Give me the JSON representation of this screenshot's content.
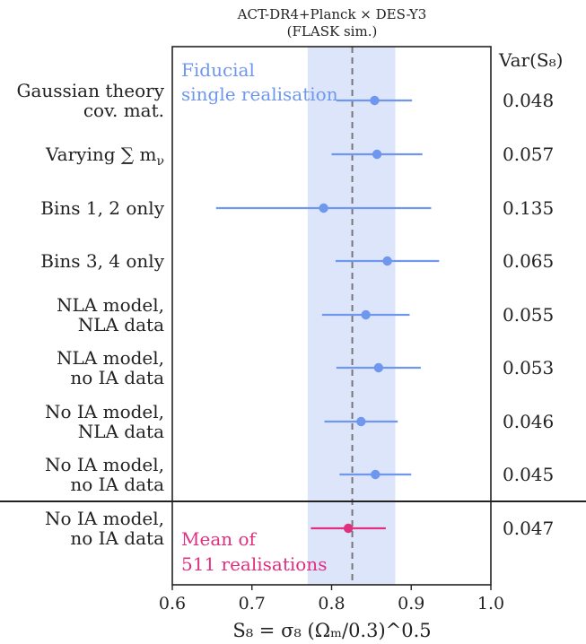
{
  "chart_data": {
    "type": "scatter",
    "title_line1": "ACT-DR4+Planck × DES-Y3",
    "title_line2": "(FLASK sim.)",
    "xlabel": "S₈ = σ₈ (Ωₘ/0.3)^0.5",
    "xlim": [
      0.6,
      1.0
    ],
    "xticks": [
      "0.6",
      "0.7",
      "0.8",
      "0.9",
      "1.0"
    ],
    "var_header": "Var(S₈)",
    "reference_line": 0.826,
    "shaded_band": [
      0.77,
      0.88
    ],
    "band_note_line1": "Fiducial",
    "band_note_line2": "single realisation",
    "mean_note_line1": "Mean of",
    "mean_note_line2": "511 realisations",
    "colors": {
      "fiducial": "#6f97ee",
      "mean": "#e0307f",
      "band": "#dde5fb",
      "refline": "#777777"
    },
    "rows": [
      {
        "label_lines": [
          "Gaussian theory",
          "cov. mat."
        ],
        "value": 0.854,
        "low": 0.806,
        "high": 0.901,
        "var": "0.048",
        "group": "fiducial"
      },
      {
        "label_lines": [
          "Varying ∑ m",
          "ν"
        ],
        "value": 0.857,
        "low": 0.8,
        "high": 0.914,
        "var": "0.057",
        "group": "fiducial"
      },
      {
        "label_lines": [
          "Bins 1, 2 only"
        ],
        "value": 0.79,
        "low": 0.655,
        "high": 0.925,
        "var": "0.135",
        "group": "fiducial"
      },
      {
        "label_lines": [
          "Bins 3, 4 only"
        ],
        "value": 0.87,
        "low": 0.805,
        "high": 0.935,
        "var": "0.065",
        "group": "fiducial"
      },
      {
        "label_lines": [
          "NLA model,",
          "NLA data"
        ],
        "value": 0.843,
        "low": 0.788,
        "high": 0.898,
        "var": "0.055",
        "group": "fiducial"
      },
      {
        "label_lines": [
          "NLA model,",
          "no IA data"
        ],
        "value": 0.859,
        "low": 0.806,
        "high": 0.912,
        "var": "0.053",
        "group": "fiducial"
      },
      {
        "label_lines": [
          "No IA model,",
          "NLA data"
        ],
        "value": 0.837,
        "low": 0.791,
        "high": 0.883,
        "var": "0.046",
        "group": "fiducial"
      },
      {
        "label_lines": [
          "No IA model,",
          "no IA data"
        ],
        "value": 0.855,
        "low": 0.81,
        "high": 0.9,
        "var": "0.045",
        "group": "fiducial"
      },
      {
        "label_lines": [
          "No IA model,",
          "no IA data"
        ],
        "value": 0.821,
        "low": 0.774,
        "high": 0.868,
        "var": "0.047",
        "group": "mean"
      }
    ]
  }
}
